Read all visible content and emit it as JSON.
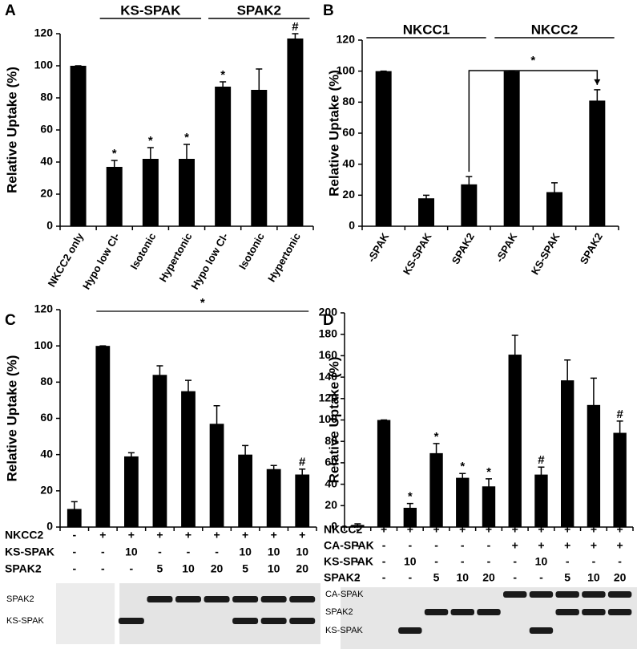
{
  "chart_data": [
    {
      "type": "bar",
      "panel_label": "A",
      "ylabel": "Relative Uptake (%)",
      "categories": [
        "NKCC2 only",
        "Hypo low Cl-",
        "Isotonic",
        "Hypertonic",
        "Hypo low Cl-",
        "Isotonic",
        "Hypertonic"
      ],
      "values": [
        100,
        37,
        42,
        42,
        87,
        85,
        117
      ],
      "errors": [
        0,
        4,
        7,
        9,
        3,
        13,
        3
      ],
      "markers": [
        null,
        "*",
        "*",
        "*",
        "*",
        null,
        "#"
      ],
      "group_labels": [
        "KS-SPAK",
        "SPAK2"
      ],
      "color": "#000000",
      "ylim": [
        0,
        120
      ],
      "yticks": [
        0,
        20,
        40,
        60,
        80,
        100,
        120
      ]
    },
    {
      "type": "bar",
      "panel_label": "B",
      "ylabel": "Relative Uptake (%)",
      "categories": [
        "-SPAK",
        "KS-SPAK",
        "SPAK2",
        "-SPAK",
        "KS-SPAK",
        "SPAK2"
      ],
      "values": [
        100,
        18,
        27,
        100,
        22,
        81
      ],
      "errors": [
        0,
        2,
        5,
        0,
        6,
        7
      ],
      "group_labels": [
        "NKCC1",
        "NKCC2"
      ],
      "bracket_label": "*",
      "color": "#000000",
      "ylim": [
        0,
        120
      ],
      "yticks": [
        0,
        20,
        40,
        60,
        80,
        100,
        120
      ]
    },
    {
      "type": "bar",
      "panel_label": "C",
      "ylabel": "Relative Uptake (%)",
      "values": [
        10,
        100,
        39,
        84,
        75,
        57,
        40,
        32,
        29
      ],
      "errors": [
        4,
        0,
        2,
        5,
        6,
        10,
        5,
        2,
        3
      ],
      "markers": [
        null,
        null,
        null,
        null,
        null,
        null,
        null,
        null,
        "#"
      ],
      "span_label": "*",
      "color": "#000000",
      "conditions": [
        {
          "name": "NKCC2",
          "values": [
            "-",
            "+",
            "+",
            "+",
            "+",
            "+",
            "+",
            "+",
            "+"
          ]
        },
        {
          "name": "KS-SPAK",
          "values": [
            "-",
            "-",
            "10",
            "-",
            "-",
            "-",
            "10",
            "10",
            "10"
          ]
        },
        {
          "name": "SPAK2",
          "values": [
            "-",
            "-",
            "-",
            "5",
            "10",
            "20",
            "5",
            "10",
            "20"
          ]
        }
      ],
      "blot_labels": [
        "SPAK2",
        "KS-SPAK"
      ],
      "ylim": [
        0,
        120
      ],
      "yticks": [
        0,
        20,
        40,
        60,
        80,
        100,
        120
      ]
    },
    {
      "type": "bar",
      "panel_label": "D",
      "ylabel": "Relative Uptake (%)",
      "values": [
        2,
        100,
        18,
        69,
        46,
        38,
        161,
        49,
        137,
        114,
        88
      ],
      "errors": [
        1,
        0,
        4,
        9,
        4,
        7,
        18,
        7,
        19,
        25,
        11
      ],
      "markers": [
        null,
        null,
        "*",
        "*",
        "*",
        "*",
        null,
        "#",
        null,
        null,
        "#"
      ],
      "color": "#000000",
      "conditions": [
        {
          "name": "NKCC2",
          "values": [
            "-",
            "+",
            "+",
            "+",
            "+",
            "+",
            "+",
            "+",
            "+",
            "+",
            "+"
          ]
        },
        {
          "name": "CA-SPAK",
          "values": [
            "-",
            "-",
            "-",
            "-",
            "-",
            "-",
            "+",
            "+",
            "+",
            "+",
            "+"
          ]
        },
        {
          "name": "KS-SPAK",
          "values": [
            "-",
            "-",
            "10",
            "-",
            "-",
            "-",
            "-",
            "10",
            "-",
            "-",
            "-"
          ]
        },
        {
          "name": "SPAK2",
          "values": [
            "-",
            "-",
            "-",
            "5",
            "10",
            "20",
            "-",
            "-",
            "5",
            "10",
            "20"
          ]
        }
      ],
      "blot_labels": [
        "CA-SPAK",
        "SPAK2",
        "KS-SPAK"
      ],
      "ylim": [
        0,
        200
      ],
      "yticks": [
        0,
        20,
        40,
        60,
        80,
        100,
        120,
        140,
        160,
        180,
        200
      ]
    }
  ]
}
